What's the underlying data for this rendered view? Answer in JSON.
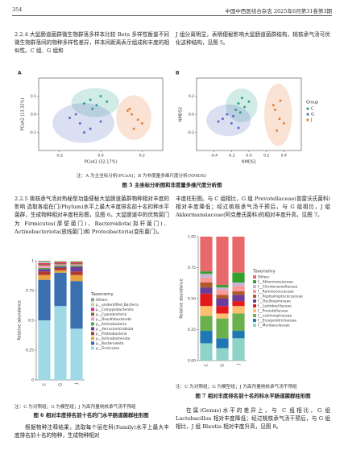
{
  "header": {
    "page": "354",
    "journal": "中国中西医结合杂志 2025年6月第31卷第3期"
  },
  "paragraphs": [
    "2.2.4 大鼠肠道菌群微生物群落多样本比较 Beta 多样性衡量不同微生物群落间的物种多样性差异，样本间距离表示组成和丰度的相似性。C 组、G 组和",
    "J 组分离明显，表明便秘影响大鼠肠道菌群结构，桃核承气汤可优化这种结构，见图 5。",
    "2.2.5 桃核承气汤对热秘型功能便秘大鼠肠道菌群物种相对丰度的影响 选取各组在门(Phylum)水平上最大丰度排名前十名的种水平菌群，生成物种相对丰度柱形图，见图 6。大鼠肠道中的优势菌门为 Firmicutes(厚壁菌门)、Bacteroidota(拟杆菌门)、Actinobacteriota(放线菌门)和 Proteobacteria(变形菌门)。",
    "丰度柱形图。与 C 组相比，G 组 Prevotellaceae(普雷沃氏菌科)相对丰度降低；经过桃核承气汤干预后，与 G 组相比，J 组 Akkermansiaceae(阿克曼氏菌科)的相对丰度升高，见图 7。",
    "根据物种注释结果，选取每个层在科(Family)水平上最大丰度排名前十名的物种，生成物种相对",
    "在属(Genus)水平的差异上，与 C 组相比，G 组 Lactobacillus 相对丰度降低；经过桃核承气汤干预后，与 G 组相比，J 组 Blautia 相对丰度升高，见图 8。"
  ],
  "figures": [
    {
      "note": "注：A 为主坐标分析(PCoA)；B 为非度量多维尺度分析(NMDS)",
      "caption": "图 5 主坐标分析图和非度量多维尺度分析图"
    },
    {
      "note": "注：C 为对照组；G 为模型组；J 为高剂量桃核承气汤干预组",
      "caption": "图 6 相对丰度排名前十名的门水平肠道菌群柱形图"
    },
    {
      "note": "注：C 为对照组；G 为模型组；J 为高剂量桃核承气汤干预组",
      "caption": "图 7 相对丰度排名前十名的科水平肠道菌群柱形图"
    }
  ],
  "chart_data": [
    {
      "type": "scatter",
      "panel": "A",
      "xlabel": "PCoA1 (32.17%)",
      "ylabel": "PCoA2 (13.32%)",
      "xlim": [
        -0.3,
        0.3
      ],
      "xticks": [
        -0.2,
        {
          "value": 0,
          "label": "0.0"
        },
        0.2
      ],
      "ylim": [
        -0.2,
        0.2
      ],
      "yticks": [
        -0.1,
        {
          "value": 0,
          "label": "0.0"
        },
        0.1
      ],
      "series": [
        {
          "color": "#2ca58d",
          "x": [
            -0.05,
            -0.02,
            0.0,
            -0.08,
            0.03,
            -0.04
          ],
          "y": [
            0.08,
            0.05,
            0.1,
            0.06,
            0.07,
            0.03
          ]
        },
        {
          "color": "#5b6fc4",
          "x": [
            -0.15,
            -0.1,
            -0.05,
            -0.12,
            0.0,
            -0.08
          ],
          "y": [
            -0.02,
            -0.05,
            -0.08,
            0.0,
            -0.04,
            -0.1
          ]
        },
        {
          "color": "#e8803a",
          "x": [
            0.15,
            0.18,
            0.13,
            0.2,
            0.16,
            0.14
          ],
          "y": [
            0.0,
            -0.03,
            0.02,
            -0.05,
            -0.08,
            0.03
          ]
        }
      ]
    },
    {
      "type": "scatter",
      "panel": "B",
      "xlabel": "NMDS1",
      "ylabel": "NMDS2",
      "legend_title": "Group",
      "xlim": [
        -0.6,
        0.6
      ],
      "xticks": [
        -0.4,
        -0.2,
        {
          "value": 0,
          "label": "0.0"
        },
        0.2,
        0.4
      ],
      "ylim": [
        -0.4,
        0.4
      ],
      "yticks": [
        -0.2,
        {
          "value": 0,
          "label": "0.0"
        },
        0.2
      ],
      "series": [
        {
          "name": "C",
          "color": "#2ca58d",
          "x": [
            -0.12,
            -0.05,
            -0.15,
            0.0,
            -0.08,
            -0.1
          ],
          "y": [
            0.12,
            0.08,
            0.05,
            0.14,
            0.18,
            0.02
          ]
        },
        {
          "name": "G",
          "color": "#5b6fc4",
          "x": [
            -0.3,
            -0.2,
            -0.25,
            -0.12,
            -0.35,
            -0.18
          ],
          "y": [
            -0.05,
            -0.1,
            0.0,
            -0.15,
            -0.08,
            -0.02
          ]
        },
        {
          "name": "J",
          "color": "#e8803a",
          "x": [
            0.3,
            0.35,
            0.28,
            0.4,
            0.32,
            0.36
          ],
          "y": [
            0.05,
            -0.05,
            0.1,
            -0.1,
            -0.18,
            0.15
          ]
        }
      ]
    },
    {
      "type": "stacked_bar",
      "ylabel": "Relative abundance",
      "legend_title": "Taxonomy",
      "categories": [
        "C",
        "G",
        "J"
      ],
      "ylim": [
        0,
        1
      ],
      "yticks": [
        0,
        0.25,
        0.5,
        0.75,
        1
      ],
      "series": [
        {
          "name": "p__Firmicutes",
          "color": "#9fd9e6",
          "values": [
            0.5,
            0.62,
            0.43
          ]
        },
        {
          "name": "p__Bacteroidota",
          "color": "#3a6fb0",
          "values": [
            0.34,
            0.28,
            0.4
          ]
        },
        {
          "name": "p__Actinobacteriota",
          "color": "#e8a33d",
          "values": [
            0.04,
            0.02,
            0.05
          ]
        },
        {
          "name": "p__Proteobacteria",
          "color": "#b03a2e",
          "values": [
            0.03,
            0.02,
            0.03
          ]
        },
        {
          "name": "p__Verrucomicrobiota",
          "color": "#6a3d9a",
          "values": [
            0.02,
            0.01,
            0.04
          ]
        },
        {
          "name": "p__Actinobacteria",
          "color": "#4daf4a",
          "values": [
            0.01,
            0.01,
            0.01
          ]
        },
        {
          "name": "p__Desulfobacterota",
          "color": "#f29bc1",
          "values": [
            0.02,
            0.01,
            0.01
          ]
        },
        {
          "name": "p__Cyanobacteria",
          "color": "#8c6d31",
          "values": [
            0.01,
            0.01,
            0.01
          ]
        },
        {
          "name": "p__Campylobacterota",
          "color": "#e7298a",
          "values": [
            0.01,
            0.01,
            0.01
          ]
        },
        {
          "name": "p__unidentified_Bacteria",
          "color": "#b2df8a",
          "values": [
            0.01,
            0.01,
            0.01
          ]
        },
        {
          "name": "Others",
          "color": "#999999",
          "values": [
            0.01,
            0.0,
            0.0
          ]
        }
      ]
    },
    {
      "type": "stacked_bar",
      "ylabel": "Relative abundance",
      "legend_title": "Taxonomy",
      "categories": [
        "C",
        "G",
        "J"
      ],
      "ylim": [
        0,
        1
      ],
      "yticks": [
        {
          "value": 0,
          "label": "0.00"
        },
        0.25,
        {
          "value": 0.5,
          "label": "0.50"
        },
        0.75,
        {
          "value": 1,
          "label": "1.00"
        }
      ],
      "series": [
        {
          "name": "f__Muribaculaceae",
          "color": "#8dd3c7",
          "values": [
            0.14,
            0.1,
            0.18
          ]
        },
        {
          "name": "f__Erysipelotrichaceae",
          "color": "#1f78b4",
          "values": [
            0.1,
            0.08,
            0.06
          ]
        },
        {
          "name": "f__Lachnospiraceae",
          "color": "#6ab04c",
          "values": [
            0.12,
            0.16,
            0.14
          ]
        },
        {
          "name": "f__Prevotellaceae",
          "color": "#fdbf6f",
          "values": [
            0.08,
            0.04,
            0.06
          ]
        },
        {
          "name": "f__Lactobacillaceae",
          "color": "#e31a1c",
          "values": [
            0.1,
            0.06,
            0.04
          ]
        },
        {
          "name": "f__Oscillospiraceae",
          "color": "#6a3d9a",
          "values": [
            0.05,
            0.06,
            0.05
          ]
        },
        {
          "name": "f__Peptostreptococcaceae",
          "color": "#b15928",
          "values": [
            0.04,
            0.03,
            0.03
          ]
        },
        {
          "name": "f__Ruminococcaceae",
          "color": "#fb9a99",
          "values": [
            0.04,
            0.04,
            0.04
          ]
        },
        {
          "name": "f__Christensenellaceae",
          "color": "#cab2d6",
          "values": [
            0.03,
            0.02,
            0.03
          ]
        },
        {
          "name": "f__Akkermansiaceae",
          "color": "#33a02c",
          "values": [
            0.02,
            0.02,
            0.08
          ]
        },
        {
          "name": "Others",
          "color": "#e8696b",
          "values": [
            0.28,
            0.39,
            0.29
          ]
        }
      ]
    }
  ]
}
